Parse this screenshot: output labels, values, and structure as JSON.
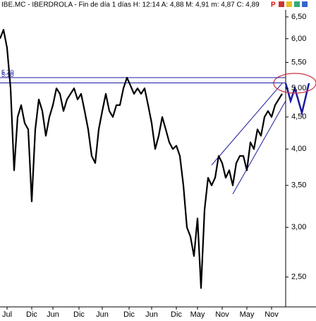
{
  "chart_data": {
    "type": "line",
    "title": "IBE.MC - IBERDROLA - Fin de día 1 días H: 12:14 A: 4,88 M: 4,91 m: 4,87 C: 4,89",
    "indicator": "P",
    "log_scale": true,
    "color": "#000000",
    "values": [
      6.0,
      6.2,
      5.8,
      5.0,
      3.7,
      4.5,
      4.7,
      4.4,
      4.3,
      3.3,
      4.3,
      4.8,
      4.6,
      4.2,
      4.5,
      4.7,
      5.0,
      4.9,
      4.6,
      4.8,
      4.9,
      5.0,
      4.8,
      4.9,
      4.6,
      4.3,
      3.9,
      3.8,
      4.3,
      4.6,
      4.9,
      4.6,
      4.5,
      4.7,
      4.7,
      5.0,
      5.2,
      5.05,
      4.9,
      5.0,
      4.9,
      5.0,
      4.7,
      4.4,
      4.0,
      4.2,
      4.5,
      4.3,
      4.1,
      4.0,
      4.05,
      3.9,
      3.5,
      3.0,
      2.9,
      2.7,
      3.1,
      2.4,
      3.2,
      3.6,
      3.5,
      3.6,
      3.9,
      3.8,
      3.6,
      3.7,
      3.5,
      3.8,
      3.9,
      3.9,
      3.7,
      4.1,
      4.0,
      4.3,
      4.2,
      4.5,
      4.6,
      4.5,
      4.7,
      4.8,
      4.9
    ],
    "xlim": [
      0,
      81
    ],
    "xticks": [
      {
        "value": 2,
        "label": "Jul"
      },
      {
        "value": 9,
        "label": "Dic"
      },
      {
        "value": 15,
        "label": "Jun"
      },
      {
        "value": 22.4,
        "label": "Dic"
      },
      {
        "value": 29,
        "label": "Jun"
      },
      {
        "value": 36.6,
        "label": "Dic"
      },
      {
        "value": 43,
        "label": "Jun"
      },
      {
        "value": 50,
        "label": "Dic"
      },
      {
        "value": 56,
        "label": "May"
      },
      {
        "value": 63,
        "label": "Nov"
      },
      {
        "value": 70,
        "label": "May"
      },
      {
        "value": 77,
        "label": "Nov"
      }
    ],
    "ylim": [
      2.24,
      6.67
    ],
    "yticks": [
      {
        "value": 2.5,
        "label": "2,50"
      },
      {
        "value": 3,
        "label": "3,00"
      },
      {
        "value": 3.5,
        "label": "3,50"
      },
      {
        "value": 4,
        "label": "4,00"
      },
      {
        "value": 4.5,
        "label": "4,50"
      },
      {
        "value": 5,
        "label": "5,00"
      },
      {
        "value": 5.5,
        "label": "5,50"
      },
      {
        "value": 6,
        "label": "6,00"
      },
      {
        "value": 6.5,
        "label": "6,50"
      }
    ],
    "hlines": [
      {
        "value": 5.2,
        "label": "5,20"
      },
      {
        "value": 5.1,
        "label": "5,10"
      }
    ],
    "hline_color": "#1a1aa0"
  }
}
